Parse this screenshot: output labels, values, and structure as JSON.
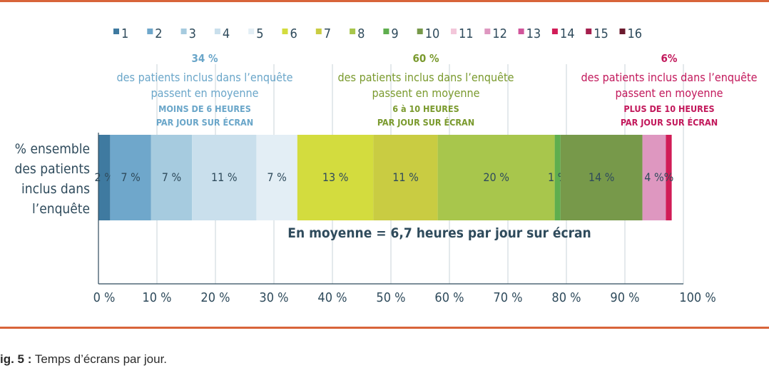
{
  "caption": {
    "label": "ig. 5 :",
    "text": " Temps d’écrans par jour."
  },
  "chart_data": {
    "type": "bar",
    "orientation": "horizontal-stacked",
    "category": [
      "% ensemble",
      "des patients",
      "inclus dans",
      "l’enquête"
    ],
    "xlim": [
      0,
      100
    ],
    "x_ticks": [
      "0 %",
      "10 %",
      "20 %",
      "30 %",
      "40 %",
      "50 %",
      "60 %",
      "70 %",
      "80 %",
      "90 %",
      "100 %"
    ],
    "grid": true,
    "legend_position": "top",
    "series": [
      {
        "name": "1",
        "value": 2,
        "label": "2 %",
        "color": "#3f7aa0"
      },
      {
        "name": "2",
        "value": 7,
        "label": "7 %",
        "color": "#6fa7cb"
      },
      {
        "name": "3",
        "value": 7,
        "label": "7 %",
        "color": "#a6cbdf"
      },
      {
        "name": "4",
        "value": 11,
        "label": "11 %",
        "color": "#c9dfec"
      },
      {
        "name": "5",
        "value": 7,
        "label": "7 %",
        "color": "#e3eef5"
      },
      {
        "name": "6",
        "value": 13,
        "label": "13 %",
        "color": "#d3dc3e"
      },
      {
        "name": "7",
        "value": 11,
        "label": "11 %",
        "color": "#c9cc42"
      },
      {
        "name": "8",
        "value": 20,
        "label": "20 %",
        "color": "#a8c64c"
      },
      {
        "name": "9",
        "value": 1,
        "label": "1 %",
        "color": "#5fae4e"
      },
      {
        "name": "10",
        "value": 14,
        "label": "14 %",
        "color": "#77994a"
      },
      {
        "name": "11",
        "value": 0,
        "label": "",
        "color": "#f3c7da"
      },
      {
        "name": "12",
        "value": 4,
        "label": "4 %",
        "color": "#de97c0"
      },
      {
        "name": "13",
        "value": 0,
        "label": "",
        "color": "#d1559b"
      },
      {
        "name": "14",
        "value": 1,
        "label": "%",
        "color": "#d11c57"
      },
      {
        "name": "15",
        "value": 0,
        "label": "",
        "color": "#a51f4e"
      },
      {
        "name": "16",
        "value": 0,
        "label": "",
        "color": "#6b1a2e"
      }
    ],
    "annotations": [
      {
        "pct": "34 %",
        "line1": "des patients inclus dans l’enquête",
        "line2": "passent en moyenne",
        "line3": "MOINS DE 6 HEURES",
        "line4": "PAR JOUR SUR ÉCRAN",
        "color": "#6aa6c9",
        "span": [
          0,
          34
        ]
      },
      {
        "pct": "60 %",
        "line1": "des patients inclus dans l’enquête",
        "line2": "passent en moyenne",
        "line3": "6 à 10 HEURES",
        "line4": "PAR JOUR SUR ÉCRAN",
        "color": "#7a9a2e",
        "span": [
          34,
          94
        ]
      },
      {
        "pct": "6%",
        "line1": "des patients inclus dans l’enquête",
        "line2": "passent en moyenne",
        "line3": "PLUS DE 10 HEURES",
        "line4": "PAR JOUR SUR ÉCRAN",
        "color": "#c2185b",
        "span": [
          94,
          100
        ]
      }
    ],
    "mean_note": "En moyenne = 6,7 heures par jour sur écran",
    "bar_label_color": "#2f4b5c",
    "mean_note_color": "#2f4b5c",
    "axis_color": "#2f4b5c"
  }
}
